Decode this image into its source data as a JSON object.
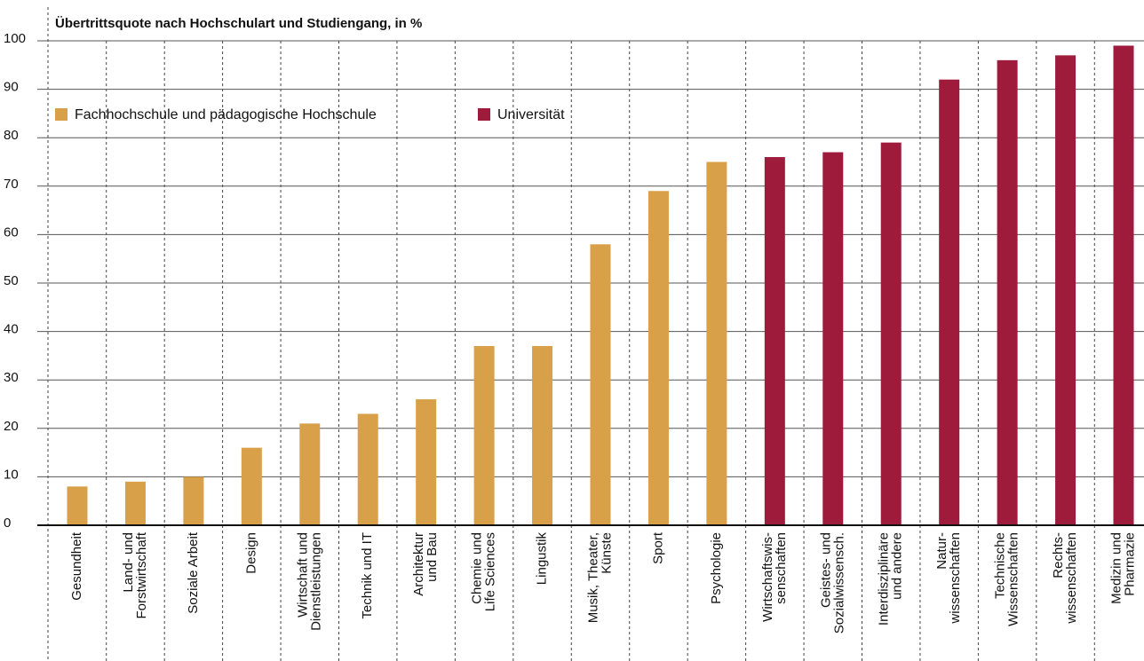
{
  "chart_data": {
    "type": "bar",
    "title": "Übertrittsquote nach Hochschulart und Studiengang, in %",
    "categories": [
      "Gesundheit",
      "Land- und\nForstwirtschaft",
      "Soziale Arbeit",
      "Design",
      "Wirtschaft und\nDienstleistungen",
      "Technik und IT",
      "Architektur\nund Bau",
      "Chemie und\nLife Sciences",
      "Lingustik",
      "Musik, Theater,\nKünste",
      "Sport",
      "Psychologie",
      "Wirtschaftswis-\nsenschaften",
      "Geistes- und\nSozialwissensch.",
      "Interdisziplinäre\nund andere",
      "Natur-\nwissenschaften",
      "Technische\nWissenschaften",
      "Rechts-\nwissenschaften",
      "Medizin und\nPharmazie"
    ],
    "series": [
      {
        "name": "Fachhochschule und pädagogische Hochschule",
        "color": "#d9a04a",
        "values": [
          8,
          9,
          10,
          16,
          21,
          23,
          26,
          37,
          37,
          58,
          69,
          75,
          null,
          null,
          null,
          null,
          null,
          null,
          null
        ]
      },
      {
        "name": "Universität",
        "color": "#9e1b3c",
        "values": [
          null,
          null,
          null,
          null,
          null,
          null,
          null,
          null,
          null,
          null,
          null,
          null,
          76,
          77,
          79,
          92,
          96,
          97,
          99
        ]
      }
    ],
    "ylim": [
      0,
      100
    ],
    "yticks": [
      0,
      10,
      20,
      30,
      40,
      50,
      60,
      70,
      80,
      90,
      100
    ],
    "grid": true
  }
}
